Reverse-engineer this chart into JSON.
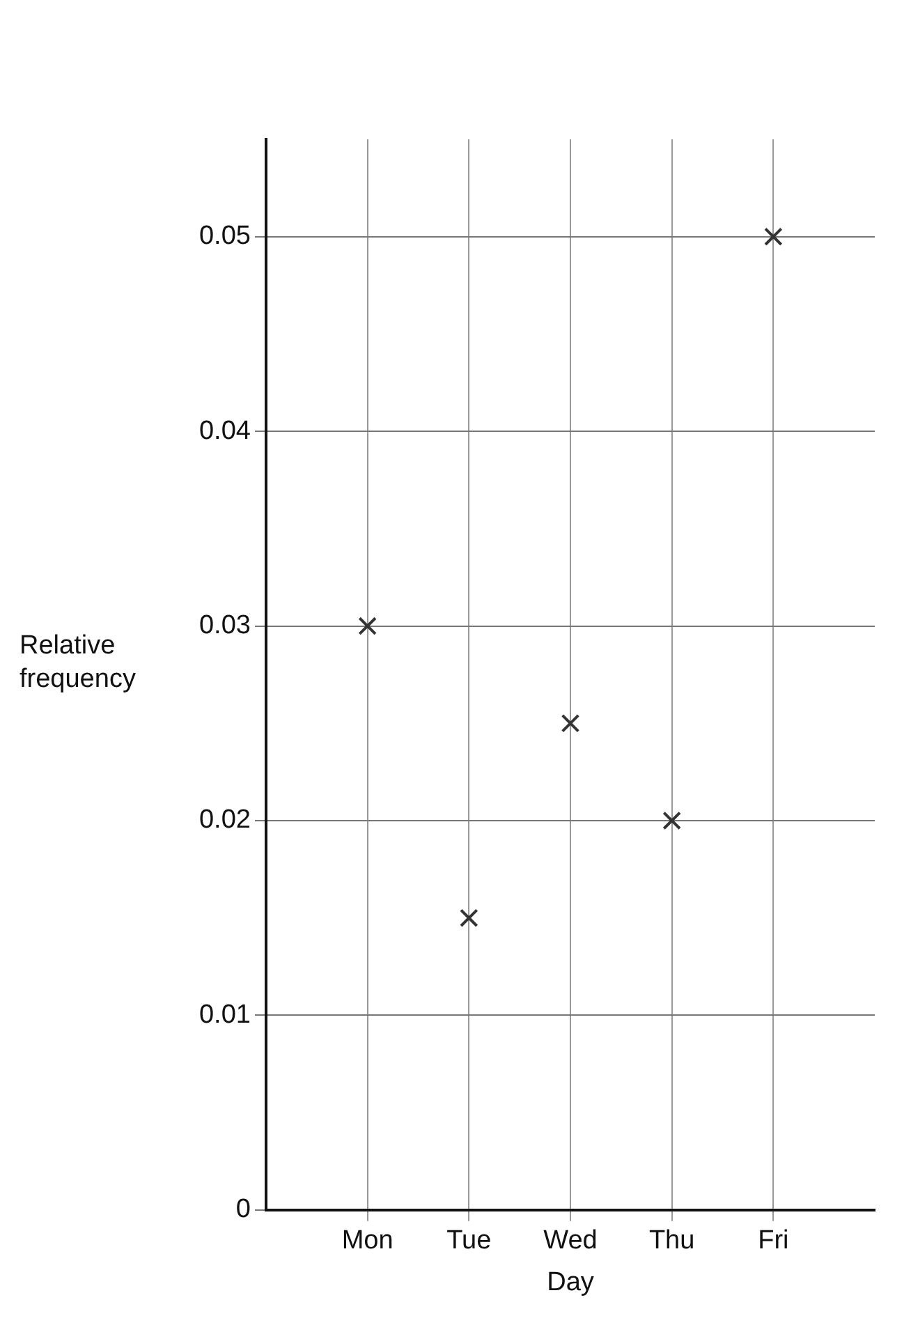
{
  "chart_data": {
    "type": "scatter",
    "xlabel": "Day",
    "ylabel": "Relative frequency",
    "categories": [
      "Mon",
      "Tue",
      "Wed",
      "Thu",
      "Fri"
    ],
    "series": [
      {
        "color": "#333333",
        "values": [
          0.03,
          0.015,
          0.025,
          0.02,
          0.05
        ]
      }
    ],
    "ylim": [
      0,
      0.055
    ],
    "yticks": [
      0,
      0.01,
      0.02,
      0.03,
      0.04,
      0.05
    ],
    "grid": true,
    "marker": "cross",
    "legend": false
  }
}
